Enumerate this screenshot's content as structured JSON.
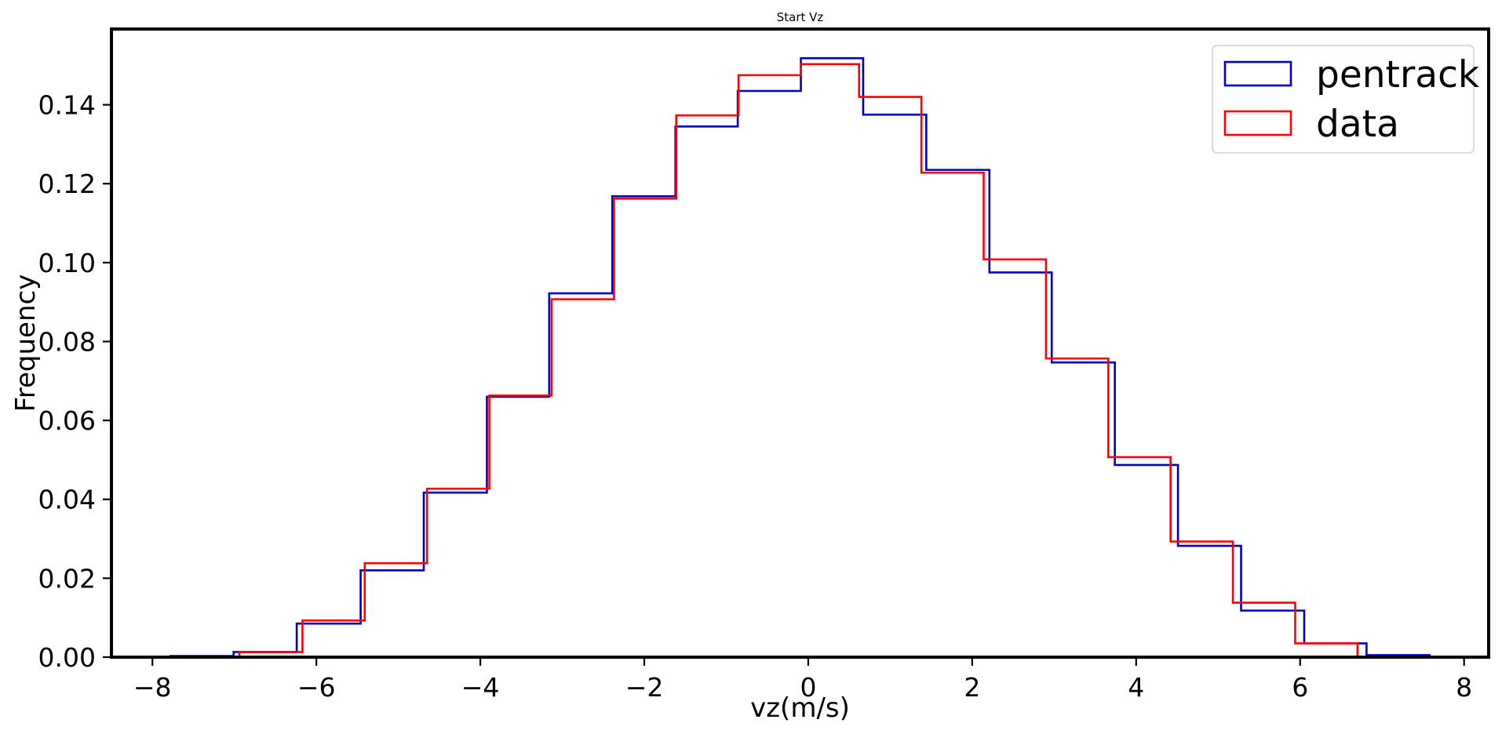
{
  "chart_data": {
    "type": "line",
    "subtype": "step-histogram",
    "title": "Start Vz",
    "xlabel": "vz(m/s)",
    "ylabel": "Frequency",
    "xlim": [
      -8.5,
      8.3
    ],
    "ylim": [
      0,
      0.1592
    ],
    "x_ticks": [
      -8,
      -6,
      -4,
      -2,
      0,
      2,
      4,
      6,
      8
    ],
    "x_tick_labels": [
      "−8",
      "−6",
      "−4",
      "−2",
      "0",
      "2",
      "4",
      "6",
      "8"
    ],
    "y_ticks": [
      0,
      0.02,
      0.04,
      0.06,
      0.08,
      0.1,
      0.12,
      0.14
    ],
    "y_tick_labels": [
      "0.00",
      "0.02",
      "0.04",
      "0.06",
      "0.08",
      "0.10",
      "0.12",
      "0.14"
    ],
    "grid": false,
    "legend": "top-right",
    "series": [
      {
        "name": "pentrack",
        "color": "#0000c0",
        "bin_edges": [
          -7.78,
          -7.01,
          -6.24,
          -5.46,
          -4.69,
          -3.92,
          -3.16,
          -2.39,
          -1.62,
          -0.86,
          -0.09,
          0.67,
          1.44,
          2.21,
          2.97,
          3.74,
          4.51,
          5.28,
          6.05,
          6.81,
          7.58
        ],
        "values": [
          0.0003,
          0.0013,
          0.0085,
          0.022,
          0.0417,
          0.066,
          0.0922,
          0.1168,
          0.1345,
          0.1435,
          0.1518,
          0.1375,
          0.1235,
          0.0975,
          0.0747,
          0.0487,
          0.0282,
          0.0118,
          0.0035,
          0.0005
        ]
      },
      {
        "name": "data",
        "color": "#ff0000",
        "bin_edges": [
          -6.94,
          -6.17,
          -5.41,
          -4.65,
          -3.89,
          -3.13,
          -2.37,
          -1.61,
          -0.85,
          -0.09,
          0.62,
          1.38,
          2.14,
          2.9,
          3.66,
          4.42,
          5.18,
          5.94,
          6.7
        ],
        "values": [
          0.0013,
          0.0093,
          0.0238,
          0.0427,
          0.0663,
          0.0907,
          0.1162,
          0.1373,
          0.1475,
          0.1503,
          0.142,
          0.1228,
          0.1008,
          0.0757,
          0.0507,
          0.0293,
          0.0138,
          0.0035
        ]
      }
    ]
  }
}
